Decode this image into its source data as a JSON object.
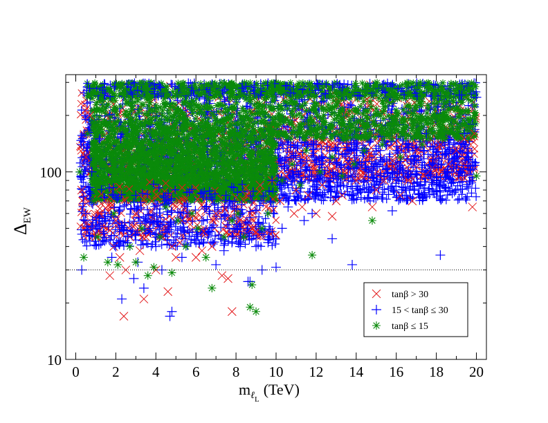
{
  "chart_data": {
    "type": "scatter",
    "title": "",
    "xlabel": {
      "main": "m",
      "sub": "ℓ",
      "subsub": "L",
      "unit": "(TeV)"
    },
    "ylabel": {
      "main": "Δ",
      "sub": "EW"
    },
    "xlim": [
      -0.5,
      20.5
    ],
    "ylim": [
      10,
      330
    ],
    "yscale": "log",
    "x_ticks": [
      0,
      2,
      4,
      6,
      8,
      10,
      12,
      14,
      16,
      18,
      20
    ],
    "y_tick_labels": [
      10,
      100
    ],
    "reference_line": {
      "y": 30,
      "style": "dotted"
    },
    "legend": {
      "position": "lower-right"
    },
    "series": [
      {
        "name": "tanβ > 30",
        "marker": "x",
        "color": "#e31a1c",
        "points": [
          [
            0.3,
            80
          ],
          [
            0.5,
            120
          ],
          [
            0.7,
            200
          ],
          [
            1.0,
            45
          ],
          [
            1.2,
            60
          ],
          [
            1.5,
            70
          ],
          [
            1.7,
            28
          ],
          [
            1.9,
            40
          ],
          [
            2.0,
            55
          ],
          [
            2.2,
            35
          ],
          [
            2.4,
            17
          ],
          [
            2.5,
            30
          ],
          [
            2.7,
            45
          ],
          [
            3.0,
            60
          ],
          [
            3.2,
            38
          ],
          [
            3.4,
            21
          ],
          [
            3.6,
            50
          ],
          [
            3.8,
            70
          ],
          [
            4.0,
            30
          ],
          [
            4.3,
            45
          ],
          [
            4.6,
            23
          ],
          [
            4.8,
            40
          ],
          [
            5.0,
            35
          ],
          [
            5.3,
            55
          ],
          [
            5.6,
            60
          ],
          [
            6.0,
            35
          ],
          [
            6.4,
            48
          ],
          [
            6.8,
            40
          ],
          [
            7.0,
            60
          ],
          [
            7.3,
            28
          ],
          [
            7.6,
            27
          ],
          [
            7.8,
            18
          ],
          [
            8.2,
            55
          ],
          [
            8.5,
            75
          ],
          [
            8.8,
            50
          ],
          [
            9.2,
            85
          ],
          [
            9.5,
            65
          ],
          [
            9.8,
            90
          ],
          [
            10.2,
            70
          ],
          [
            10.5,
            95
          ],
          [
            10.8,
            105
          ],
          [
            11.0,
            80
          ],
          [
            11.3,
            65
          ],
          [
            11.6,
            75
          ],
          [
            12.0,
            60
          ],
          [
            12.3,
            85
          ],
          [
            12.6,
            100
          ],
          [
            13.0,
            70
          ],
          [
            13.3,
            75
          ],
          [
            13.6,
            110
          ],
          [
            14.0,
            90
          ],
          [
            14.3,
            95
          ],
          [
            14.6,
            120
          ],
          [
            15.0,
            80
          ],
          [
            15.4,
            90
          ],
          [
            15.8,
            115
          ],
          [
            16.2,
            75
          ],
          [
            16.6,
            90
          ],
          [
            17.0,
            130
          ],
          [
            17.4,
            95
          ],
          [
            17.8,
            105
          ],
          [
            18.2,
            140
          ],
          [
            18.6,
            110
          ],
          [
            19.0,
            130
          ],
          [
            19.4,
            150
          ],
          [
            19.8,
            65
          ],
          [
            19.9,
            160
          ],
          [
            3.5,
            45
          ],
          [
            5.2,
            42
          ],
          [
            6.3,
            38
          ],
          [
            8.0,
            46
          ],
          [
            9.0,
            48
          ],
          [
            10.9,
            60
          ],
          [
            12.8,
            58
          ],
          [
            14.8,
            65
          ],
          [
            16.8,
            70
          ]
        ]
      },
      {
        "name": "15 < tanβ ≤ 30",
        "marker": "+",
        "color": "#0000ff",
        "points": [
          [
            0.3,
            30
          ],
          [
            0.5,
            60
          ],
          [
            0.8,
            100
          ],
          [
            1.0,
            45
          ],
          [
            1.2,
            150
          ],
          [
            1.5,
            55
          ],
          [
            1.8,
            35
          ],
          [
            2.0,
            40
          ],
          [
            2.3,
            21
          ],
          [
            2.6,
            45
          ],
          [
            2.9,
            27
          ],
          [
            3.1,
            33
          ],
          [
            3.4,
            24
          ],
          [
            3.7,
            50
          ],
          [
            4.0,
            40
          ],
          [
            4.3,
            30
          ],
          [
            4.7,
            17
          ],
          [
            4.8,
            18
          ],
          [
            5.0,
            45
          ],
          [
            5.3,
            35
          ],
          [
            5.6,
            60
          ],
          [
            6.0,
            42
          ],
          [
            6.3,
            55
          ],
          [
            6.7,
            48
          ],
          [
            7.0,
            32
          ],
          [
            7.4,
            38
          ],
          [
            7.8,
            45
          ],
          [
            8.2,
            40
          ],
          [
            8.6,
            26
          ],
          [
            8.7,
            26
          ],
          [
            9.0,
            40
          ],
          [
            9.3,
            30
          ],
          [
            9.6,
            42
          ],
          [
            10.0,
            31
          ],
          [
            10.3,
            50
          ],
          [
            10.6,
            65
          ],
          [
            11.0,
            70
          ],
          [
            11.4,
            55
          ],
          [
            11.8,
            60
          ],
          [
            12.2,
            75
          ],
          [
            12.6,
            80
          ],
          [
            12.8,
            44
          ],
          [
            13.2,
            85
          ],
          [
            13.6,
            90
          ],
          [
            13.8,
            32
          ],
          [
            14.2,
            80
          ],
          [
            14.6,
            90
          ],
          [
            15.0,
            110
          ],
          [
            15.4,
            95
          ],
          [
            15.8,
            62
          ],
          [
            16.2,
            120
          ],
          [
            16.6,
            100
          ],
          [
            17.0,
            115
          ],
          [
            17.4,
            130
          ],
          [
            17.8,
            110
          ],
          [
            18.2,
            36
          ],
          [
            18.6,
            140
          ],
          [
            19.0,
            120
          ],
          [
            19.4,
            160
          ],
          [
            19.8,
            180
          ],
          [
            20.0,
            250
          ],
          [
            16.0,
            150
          ],
          [
            14.0,
            130
          ],
          [
            12.0,
            140
          ],
          [
            11.0,
            100
          ],
          [
            9.8,
            90
          ],
          [
            2.2,
            65
          ],
          [
            3.0,
            75
          ],
          [
            4.5,
            70
          ],
          [
            6.5,
            65
          ],
          [
            7.5,
            75
          ],
          [
            8.8,
            70
          ],
          [
            10.8,
            85
          ],
          [
            13.0,
            110
          ],
          [
            15.2,
            130
          ],
          [
            17.5,
            160
          ]
        ]
      },
      {
        "name": "tanβ ≤ 15",
        "marker": "*",
        "color": "#0a8a0a",
        "points": [
          [
            0.2,
            100
          ],
          [
            0.4,
            35
          ],
          [
            0.6,
            160
          ],
          [
            0.9,
            70
          ],
          [
            1.1,
            45
          ],
          [
            1.3,
            110
          ],
          [
            1.6,
            33
          ],
          [
            1.9,
            60
          ],
          [
            2.1,
            32
          ],
          [
            2.4,
            80
          ],
          [
            2.7,
            40
          ],
          [
            3.0,
            33
          ],
          [
            3.3,
            50
          ],
          [
            3.6,
            28
          ],
          [
            3.9,
            31
          ],
          [
            4.2,
            45
          ],
          [
            4.5,
            65
          ],
          [
            4.8,
            29
          ],
          [
            5.1,
            55
          ],
          [
            5.5,
            40
          ],
          [
            5.8,
            60
          ],
          [
            6.1,
            50
          ],
          [
            6.5,
            35
          ],
          [
            6.8,
            24
          ],
          [
            7.1,
            70
          ],
          [
            7.4,
            45
          ],
          [
            7.8,
            55
          ],
          [
            8.1,
            60
          ],
          [
            8.4,
            45
          ],
          [
            8.7,
            19
          ],
          [
            8.8,
            25
          ],
          [
            9.0,
            18
          ],
          [
            9.3,
            50
          ],
          [
            9.6,
            60
          ],
          [
            9.9,
            75
          ],
          [
            10.3,
            90
          ],
          [
            10.8,
            110
          ],
          [
            11.2,
            85
          ],
          [
            11.8,
            36
          ],
          [
            12.2,
            100
          ],
          [
            12.8,
            120
          ],
          [
            13.3,
            95
          ],
          [
            13.9,
            110
          ],
          [
            14.4,
            130
          ],
          [
            14.8,
            55
          ],
          [
            15.3,
            140
          ],
          [
            15.8,
            150
          ],
          [
            16.2,
            120
          ],
          [
            16.8,
            170
          ],
          [
            17.3,
            140
          ],
          [
            17.8,
            160
          ],
          [
            18.3,
            150
          ],
          [
            18.8,
            175
          ],
          [
            19.3,
            180
          ],
          [
            19.8,
            175
          ],
          [
            20.0,
            95
          ],
          [
            19.9,
            200
          ],
          [
            16.0,
            180
          ],
          [
            13.5,
            150
          ],
          [
            11.5,
            130
          ],
          [
            2.0,
            120
          ],
          [
            3.5,
            150
          ],
          [
            5.0,
            130
          ],
          [
            6.5,
            160
          ],
          [
            8.0,
            140
          ],
          [
            9.5,
            170
          ]
        ]
      }
    ]
  }
}
